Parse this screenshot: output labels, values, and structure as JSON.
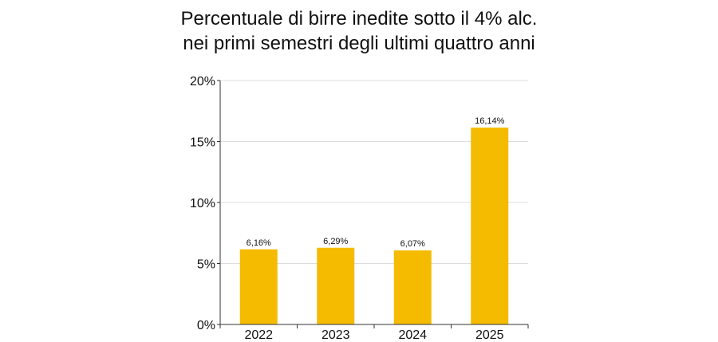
{
  "chart_data": {
    "type": "bar",
    "title_lines": [
      "Percentuale di birre inedite sotto il 4% alc.",
      "nei primi semestri degli ultimi quattro anni"
    ],
    "categories": [
      "2022",
      "2023",
      "2024",
      "2025"
    ],
    "values": [
      6.16,
      6.29,
      6.07,
      16.14
    ],
    "data_labels": [
      "6,16%",
      "6,29%",
      "6,07%",
      "16,14%"
    ],
    "xlabel": "",
    "ylabel": "",
    "ylim": [
      0,
      20
    ],
    "yticks": [
      0,
      5,
      10,
      15,
      20
    ],
    "ytick_labels": [
      "0%",
      "5%",
      "10%",
      "15%",
      "20%"
    ],
    "grid": "horizontal",
    "legend": "none",
    "bar_color": "#F5BB00",
    "grid_color": "#DDDDDD",
    "axis_color": "#333333"
  }
}
